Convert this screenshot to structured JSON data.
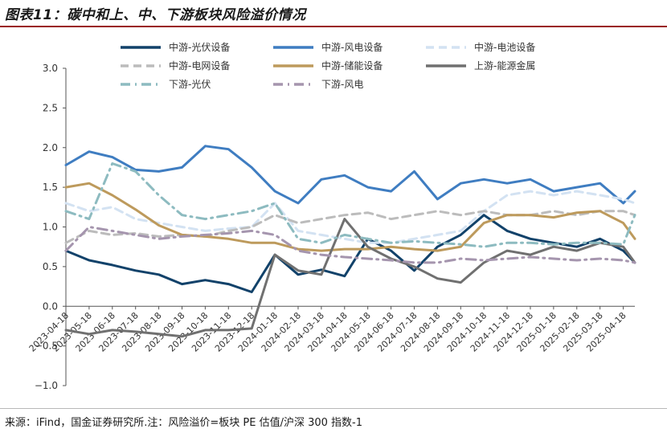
{
  "title": "图表11：碳中和上、中、下游板块风险溢价情况",
  "footer": "来源：iFind，国金证券研究所.注：风险溢价=板块 PE 估值/沪深 300 指数-1",
  "chart_data": {
    "type": "line",
    "ylim": [
      -1.0,
      3.0
    ],
    "yticks": [
      "−1.0",
      "−0.5",
      "0.0",
      "0.5",
      "1.0",
      "1.5",
      "2.0",
      "2.5",
      "3.0"
    ],
    "xticks": [
      "2023-04-18",
      "2023-05-18",
      "2023-06-18",
      "2023-07-18",
      "2023-08-18",
      "2023-09-18",
      "2023-10-18",
      "2023-11-18",
      "2023-12-18",
      "2024-01-18",
      "2024-02-18",
      "2024-03-18",
      "2024-04-18",
      "2024-05-18",
      "2024-06-18",
      "2024-07-18",
      "2024-08-18",
      "2024-09-18",
      "2024-10-18",
      "2024-11-18",
      "2024-12-18",
      "2025-01-18",
      "2025-02-18",
      "2025-03-18",
      "2025-04-18"
    ],
    "x_index": [
      0,
      1,
      2,
      3,
      4,
      5,
      6,
      7,
      8,
      9,
      10,
      11,
      12,
      13,
      14,
      15,
      16,
      17,
      18,
      19,
      20,
      21,
      22,
      23,
      24,
      24.5
    ],
    "legend_position": "top",
    "grid": false,
    "series": [
      {
        "name": "中游-光伏设备",
        "color": "#12426a",
        "dash": "solid",
        "values": [
          0.7,
          0.58,
          0.52,
          0.45,
          0.4,
          0.28,
          0.33,
          0.28,
          0.18,
          0.65,
          0.4,
          0.46,
          0.38,
          0.85,
          0.7,
          0.45,
          0.75,
          0.9,
          1.15,
          0.95,
          0.85,
          0.8,
          0.75,
          0.85,
          0.7,
          0.55
        ]
      },
      {
        "name": "中游-风电设备",
        "color": "#3f7dc1",
        "dash": "solid",
        "values": [
          1.78,
          1.95,
          1.88,
          1.72,
          1.7,
          1.75,
          2.02,
          1.98,
          1.75,
          1.45,
          1.3,
          1.6,
          1.65,
          1.5,
          1.45,
          1.7,
          1.35,
          1.55,
          1.6,
          1.55,
          1.6,
          1.45,
          1.5,
          1.55,
          1.3,
          1.45
        ]
      },
      {
        "name": "中游-电池设备",
        "color": "#d3e2f2",
        "dash": "dash",
        "values": [
          1.3,
          1.2,
          1.25,
          1.1,
          1.05,
          1.0,
          0.95,
          0.98,
          1.0,
          1.3,
          0.95,
          0.9,
          0.85,
          0.8,
          0.8,
          0.85,
          0.9,
          0.95,
          1.2,
          1.4,
          1.45,
          1.4,
          1.45,
          1.4,
          1.35,
          1.3
        ]
      },
      {
        "name": "中游-电网设备",
        "color": "#bcbcbc",
        "dash": "dash",
        "values": [
          0.8,
          0.95,
          0.9,
          0.92,
          0.88,
          0.9,
          0.88,
          0.95,
          1.0,
          1.15,
          1.05,
          1.1,
          1.15,
          1.18,
          1.1,
          1.15,
          1.2,
          1.15,
          1.2,
          1.15,
          1.15,
          1.2,
          1.15,
          1.2,
          1.2,
          1.15
        ]
      },
      {
        "name": "中游-储能设备",
        "color": "#bd9a5c",
        "dash": "solid",
        "values": [
          1.5,
          1.55,
          1.4,
          1.22,
          1.02,
          0.9,
          0.88,
          0.85,
          0.8,
          0.8,
          0.72,
          0.7,
          0.72,
          0.72,
          0.75,
          0.72,
          0.7,
          0.75,
          1.05,
          1.15,
          1.15,
          1.12,
          1.18,
          1.2,
          1.05,
          0.85
        ]
      },
      {
        "name": "上游-能源金属",
        "color": "#707070",
        "dash": "solid",
        "values": [
          -0.3,
          -0.35,
          -0.3,
          -0.32,
          -0.35,
          -0.38,
          -0.3,
          -0.3,
          -0.28,
          0.65,
          0.45,
          0.4,
          1.1,
          0.75,
          0.6,
          0.5,
          0.35,
          0.3,
          0.55,
          0.7,
          0.65,
          0.75,
          0.7,
          0.8,
          0.75,
          0.55
        ]
      },
      {
        "name": "下游-光伏",
        "color": "#8dbbc0",
        "dash": "dashdot",
        "values": [
          1.2,
          1.1,
          1.8,
          1.7,
          1.4,
          1.15,
          1.1,
          1.15,
          1.2,
          1.3,
          0.85,
          0.8,
          0.9,
          0.85,
          0.8,
          0.82,
          0.8,
          0.78,
          0.75,
          0.8,
          0.8,
          0.78,
          0.8,
          0.8,
          0.78,
          1.15
        ]
      },
      {
        "name": "下游-风电",
        "color": "#a595ae",
        "dash": "dashdot",
        "values": [
          0.7,
          1.0,
          0.95,
          0.9,
          0.85,
          0.88,
          0.9,
          0.92,
          0.95,
          0.9,
          0.7,
          0.65,
          0.62,
          0.6,
          0.58,
          0.55,
          0.55,
          0.6,
          0.58,
          0.6,
          0.62,
          0.6,
          0.58,
          0.6,
          0.58,
          0.55
        ]
      }
    ]
  }
}
